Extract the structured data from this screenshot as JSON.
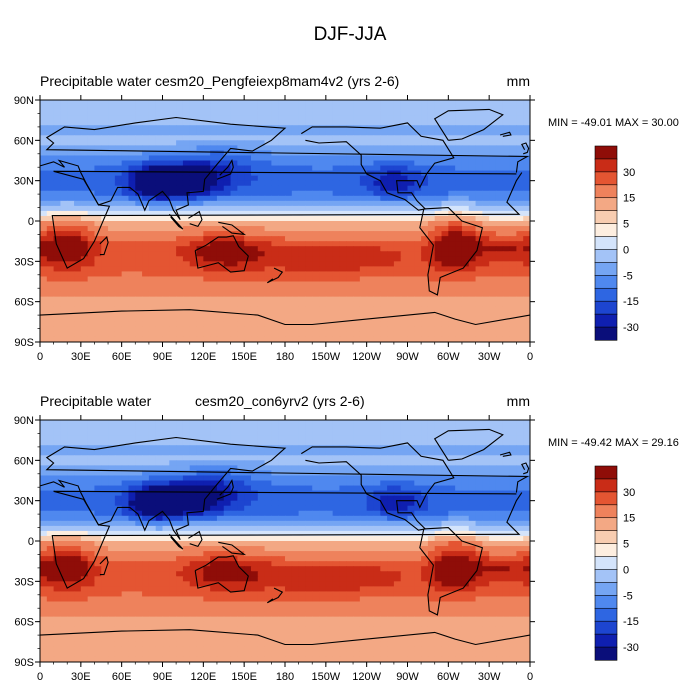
{
  "figure_title": "DJF-JJA",
  "colors": {
    "levels": [
      "#0a0e7a",
      "#0f1fb0",
      "#1d45d0",
      "#2e66e2",
      "#4f88ef",
      "#75a5f3",
      "#a3c3f7",
      "#d4e4fb",
      "#fdeee0",
      "#f8cdb1",
      "#f3a884",
      "#ee825c",
      "#e45532",
      "#c92c17",
      "#8f0d08"
    ],
    "land_outline": "#000000"
  },
  "colorbar": {
    "tick_labels": [
      "30",
      "15",
      "5",
      "0",
      "-5",
      "-15",
      "-30"
    ]
  },
  "chart_data": [
    {
      "type": "heatmap",
      "variable": "Precipitable water",
      "case": "cesm20_Pengfeiexp8mam4v2 (yrs 2-6)",
      "units": "mm",
      "stats_text": "MIN = -49.01 MAX =  30.00",
      "min": -49.01,
      "max": 30.0,
      "x_tick_labels": [
        "0",
        "30E",
        "60E",
        "90E",
        "120E",
        "150E",
        "180",
        "150W",
        "120W",
        "90W",
        "60W",
        "30W",
        "0"
      ],
      "y_tick_labels": [
        "90N",
        "60N",
        "30N",
        "0",
        "30S",
        "60S",
        "90S"
      ],
      "xlim": [
        0,
        360
      ],
      "ylim": [
        -90,
        90
      ],
      "contour_levels": [
        -35,
        -30,
        -25,
        -20,
        -15,
        -10,
        -5,
        -2,
        0,
        2,
        5,
        10,
        15,
        20,
        25,
        30
      ],
      "features": [
        {
          "lon": 85,
          "lat": 28,
          "value": -48
        },
        {
          "lon": 110,
          "lat": 30,
          "value": -40
        },
        {
          "lon": 135,
          "lat": 42,
          "value": -30
        },
        {
          "lon": 260,
          "lat": 28,
          "value": -35
        },
        {
          "lon": 20,
          "lat": -18,
          "value": 28
        },
        {
          "lon": 135,
          "lat": -22,
          "value": 24
        },
        {
          "lon": 305,
          "lat": -18,
          "value": 30
        }
      ]
    },
    {
      "type": "heatmap",
      "variable": "Precipitable water",
      "case": "cesm20_con6yrv2 (yrs 2-6)",
      "units": "mm",
      "stats_text": "MIN = -49.42 MAX =  29.16",
      "min": -49.42,
      "max": 29.16,
      "x_tick_labels": [
        "0",
        "30E",
        "60E",
        "90E",
        "120E",
        "150E",
        "180",
        "150W",
        "120W",
        "90W",
        "60W",
        "30W",
        "0"
      ],
      "y_tick_labels": [
        "90N",
        "60N",
        "30N",
        "0",
        "30S",
        "60S",
        "90S"
      ],
      "xlim": [
        0,
        360
      ],
      "ylim": [
        -90,
        90
      ],
      "contour_levels": [
        -35,
        -30,
        -25,
        -20,
        -15,
        -10,
        -5,
        -2,
        0,
        2,
        5,
        10,
        15,
        20,
        25,
        30
      ],
      "features": [
        {
          "lon": 85,
          "lat": 28,
          "value": -49
        },
        {
          "lon": 112,
          "lat": 32,
          "value": -40
        },
        {
          "lon": 135,
          "lat": 42,
          "value": -30
        },
        {
          "lon": 262,
          "lat": 28,
          "value": -34
        },
        {
          "lon": 20,
          "lat": -18,
          "value": 27
        },
        {
          "lon": 135,
          "lat": -22,
          "value": 23
        },
        {
          "lon": 305,
          "lat": -18,
          "value": 29
        }
      ]
    }
  ]
}
